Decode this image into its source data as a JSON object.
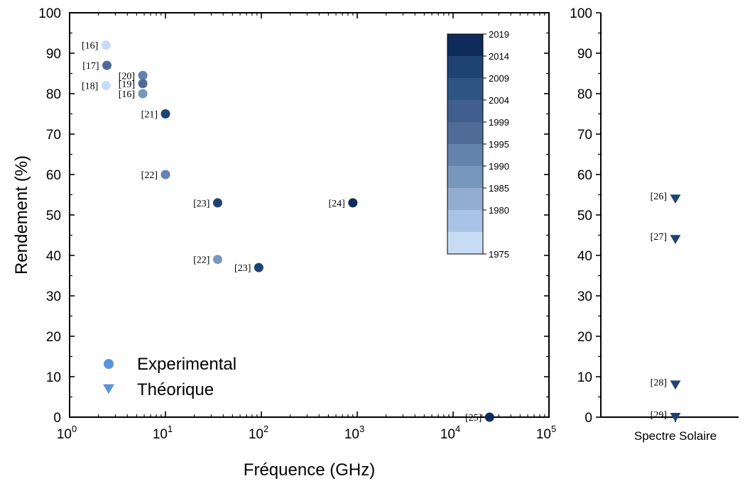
{
  "chart_data": [
    {
      "type": "scatter",
      "xlabel": "Fréquence (GHz)",
      "ylabel": "Rendement (%)",
      "xscale": "log",
      "xlim": [
        1,
        100000
      ],
      "ylim": [
        0,
        100
      ],
      "x_tick_labels": [
        {
          "base": "10",
          "exp": "0",
          "value": 1
        },
        {
          "base": "10",
          "exp": "1",
          "value": 10
        },
        {
          "base": "10",
          "exp": "2",
          "value": 100
        },
        {
          "base": "10",
          "exp": "3",
          "value": 1000
        },
        {
          "base": "10",
          "exp": "4",
          "value": 10000
        },
        {
          "base": "10",
          "exp": "5",
          "value": 100000
        }
      ],
      "y_ticks": [
        "0",
        "10",
        "20",
        "30",
        "40",
        "50",
        "60",
        "70",
        "80",
        "90",
        "100"
      ],
      "legend": {
        "placement": "bottom-left",
        "entries": [
          {
            "label": "Experimental",
            "marker": "circle",
            "color": "#5b93d8"
          },
          {
            "label": "Théorique",
            "marker": "triangle-down",
            "color": "#5b93d8"
          }
        ]
      },
      "colorbar": {
        "placement": "top-right",
        "labels": [
          "2019",
          "2014",
          "2009",
          "2004",
          "1999",
          "1995",
          "1990",
          "1985",
          "1980",
          "1975"
        ],
        "colors": [
          "#0e2b5c",
          "#1e4373",
          "#2e5484",
          "#415f8e",
          "#4f6c99",
          "#6483ad",
          "#7897bd",
          "#92add0",
          "#a9c3e6",
          "#c8dcf6"
        ]
      },
      "points": [
        {
          "ref": "[16]",
          "x": 2.4,
          "y": 92,
          "color": "#c8dcf6"
        },
        {
          "ref": "[17]",
          "x": 2.45,
          "y": 87,
          "color": "#4f6c99"
        },
        {
          "ref": "[18]",
          "x": 2.4,
          "y": 82,
          "color": "#c8dcf6"
        },
        {
          "ref": "[20]",
          "x": 5.8,
          "y": 84.5,
          "color": "#6483ad"
        },
        {
          "ref": "[19]",
          "x": 5.8,
          "y": 82.5,
          "color": "#4f6c99"
        },
        {
          "ref": "[16]",
          "x": 5.8,
          "y": 80,
          "color": "#7897bd"
        },
        {
          "ref": "[21]",
          "x": 10,
          "y": 75,
          "color": "#1e4373"
        },
        {
          "ref": "[22]",
          "x": 10,
          "y": 60,
          "color": "#6483ad"
        },
        {
          "ref": "[23]",
          "x": 35,
          "y": 53,
          "color": "#1e4373"
        },
        {
          "ref": "[24]",
          "x": 900,
          "y": 53,
          "color": "#0e2b5c"
        },
        {
          "ref": "[22]",
          "x": 35,
          "y": 39,
          "color": "#7897bd"
        },
        {
          "ref": "[23]",
          "x": 94,
          "y": 37,
          "color": "#1e4373"
        },
        {
          "ref": "[25]",
          "x": 24000,
          "y": 0,
          "color": "#0e2b5c"
        }
      ]
    },
    {
      "type": "scatter",
      "categories": [
        "Spectre Solaire"
      ],
      "ylim": [
        0,
        100
      ],
      "y_ticks": [
        "0",
        "10",
        "20",
        "30",
        "40",
        "50",
        "60",
        "70",
        "80",
        "90",
        "100"
      ],
      "points": [
        {
          "ref": "[26]",
          "category": "Spectre Solaire",
          "y": 54,
          "color": "#1e4373"
        },
        {
          "ref": "[27]",
          "category": "Spectre Solaire",
          "y": 44,
          "color": "#1e4373"
        },
        {
          "ref": "[28]",
          "category": "Spectre Solaire",
          "y": 8,
          "color": "#1e4373"
        },
        {
          "ref": "[29]",
          "category": "Spectre Solaire",
          "y": 0,
          "color": "#1e4373"
        }
      ]
    }
  ]
}
